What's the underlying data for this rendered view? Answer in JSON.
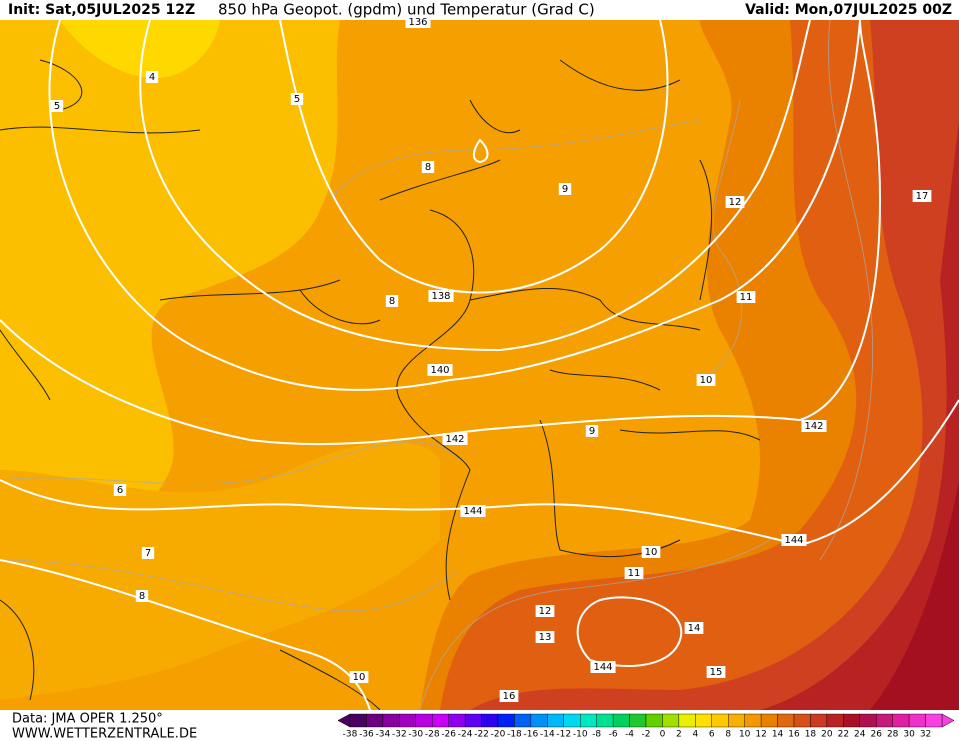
{
  "header": {
    "init": "Init: Sat,05JUL2025 12Z",
    "title": "850 hPa Geopot. (gpdm) und Temperatur (Grad C)",
    "valid": "Valid: Mon,07JUL2025 00Z"
  },
  "footer": {
    "source": "Data: JMA OPER 1.250°",
    "website": "WWW.WETTERZENTRALE.DE"
  },
  "contour_labels": [
    "136",
    "4",
    "5",
    "5",
    "8",
    "9",
    "12",
    "17",
    "138",
    "8",
    "11",
    "140",
    "10",
    "142",
    "9",
    "142",
    "6",
    "144",
    "144",
    "7",
    "10",
    "11",
    "8",
    "12",
    "13",
    "14",
    "144",
    "15",
    "10",
    "16"
  ],
  "colorbar": {
    "labels": [
      "-38",
      "-36",
      "-34",
      "-32",
      "-30",
      "-28",
      "-26",
      "-24",
      "-22",
      "-20",
      "-18",
      "-16",
      "-14",
      "-12",
      "-10",
      "-8",
      "-6",
      "-4",
      "-2",
      "0",
      "2",
      "4",
      "6",
      "8",
      "10",
      "12",
      "14",
      "16",
      "18",
      "20",
      "22",
      "24",
      "26",
      "28",
      "30",
      "32"
    ],
    "colors": [
      "#4a0060",
      "#6a0080",
      "#8800a0",
      "#a000c0",
      "#b800e0",
      "#c800f8",
      "#9000f0",
      "#6000f0",
      "#3000f0",
      "#0020f8",
      "#0060f8",
      "#0090f8",
      "#00b8f8",
      "#00d8f0",
      "#00e8c0",
      "#00e090",
      "#00d060",
      "#20c830",
      "#60d000",
      "#a0e000",
      "#e8f000",
      "#ffe000",
      "#ffc800",
      "#f8b000",
      "#f59800",
      "#ea8000",
      "#e06810",
      "#d85018",
      "#cc3820",
      "#b82222",
      "#a81028",
      "#b01050",
      "#c81878",
      "#e020a0",
      "#f030c8",
      "#f840e0"
    ]
  }
}
